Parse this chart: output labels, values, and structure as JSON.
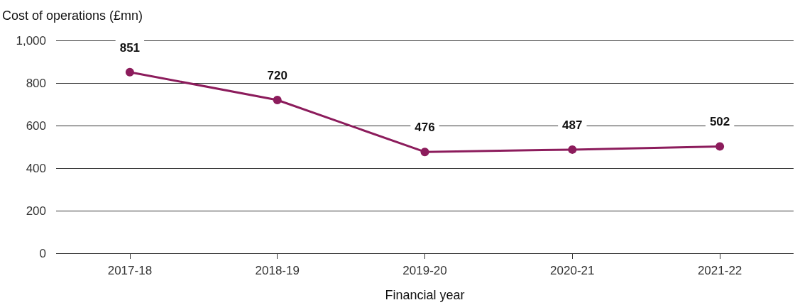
{
  "chart_data": {
    "type": "line",
    "ylabel": "Cost of operations (£mn)",
    "xlabel": "Financial year",
    "categories": [
      "2017-18",
      "2018-19",
      "2019-20",
      "2020-21",
      "2021-22"
    ],
    "series": [
      {
        "color": "#8c1c5c",
        "values": [
          851,
          720,
          476,
          487,
          502
        ]
      }
    ],
    "ylim": [
      0,
      1000
    ],
    "yticks": [
      0,
      200,
      400,
      600,
      800,
      {
        "value": 1000,
        "label": "1,000"
      }
    ],
    "grid": "y",
    "data_labels": true,
    "marker": "circle",
    "line_style": "solid"
  }
}
